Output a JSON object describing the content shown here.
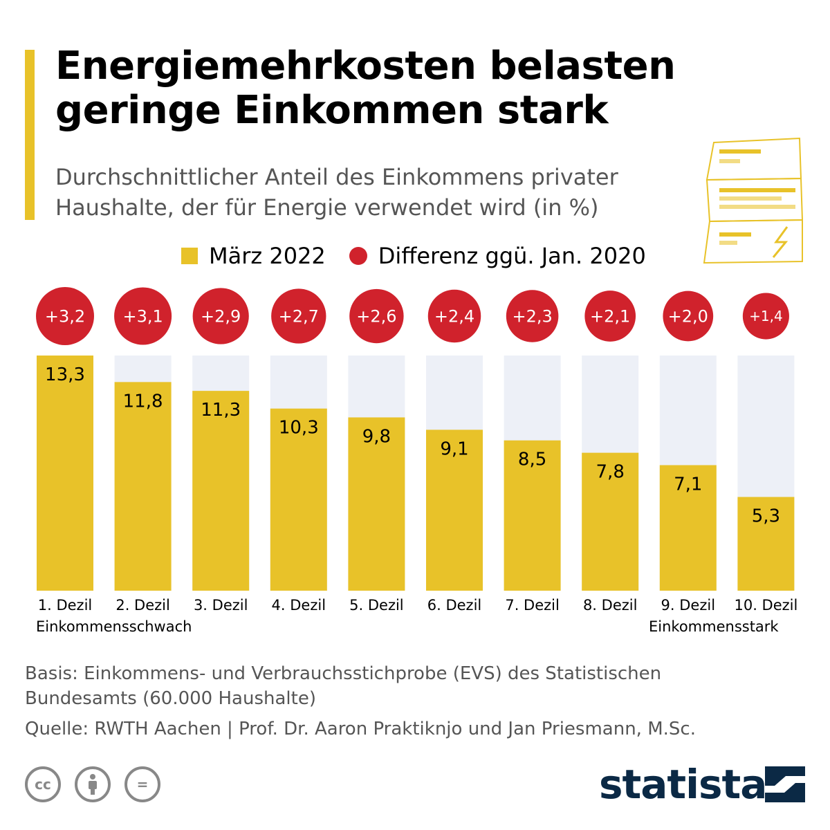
{
  "title": "Energiemehrkosten belasten geringe Einkommen stark",
  "subtitle": "Durchschnittlicher Anteil des Einkommens privater Haushalte, der für Energie verwendet wird (in %)",
  "legend": {
    "bar_label": "März 2022",
    "dot_label": "Differenz ggü. Jan. 2020"
  },
  "colors": {
    "bar": "#e8c229",
    "bar_bg": "#edf0f7",
    "dot": "#d0222c",
    "accent": "#e8c229",
    "brand": "#0b2945"
  },
  "chart_data": {
    "type": "bar",
    "categories": [
      "1. Dezil",
      "2. Dezil",
      "3. Dezil",
      "4. Dezil",
      "5. Dezil",
      "6. Dezil",
      "7. Dezil",
      "8. Dezil",
      "9. Dezil",
      "10. Dezil"
    ],
    "series": [
      {
        "name": "März 2022",
        "values": [
          13.3,
          11.8,
          11.3,
          10.3,
          9.8,
          9.1,
          8.5,
          7.8,
          7.1,
          5.3
        ],
        "labels": [
          "13,3",
          "11,8",
          "11,3",
          "10,3",
          "9,8",
          "9,1",
          "8,5",
          "7,8",
          "7,1",
          "5,3"
        ]
      },
      {
        "name": "Differenz ggü. Jan. 2020",
        "values": [
          3.2,
          3.1,
          2.9,
          2.7,
          2.6,
          2.4,
          2.3,
          2.1,
          2.0,
          1.4
        ],
        "labels": [
          "+3,2",
          "+3,1",
          "+2,9",
          "+2,7",
          "+2,6",
          "+2,4",
          "+2,3",
          "+2,1",
          "+2,0",
          "+1,4"
        ]
      }
    ],
    "ylim": [
      0,
      13.3
    ]
  },
  "axis_notes": {
    "low": "Einkommensschwach",
    "high": "Einkommensstark"
  },
  "basis": "Basis: Einkommens- und Verbrauchsstichprobe (EVS) des Statistischen Bundesamts (60.000 Haushalte)",
  "source": "Quelle: RWTH Aachen | Prof. Dr. Aaron Praktiknjo und Jan Priesmann, M.Sc.",
  "license_icons": [
    {
      "name": "cc-icon",
      "text": "cc"
    },
    {
      "name": "attribution-icon",
      "text": ""
    },
    {
      "name": "no-derivatives-icon",
      "text": "="
    }
  ],
  "brand": "statista"
}
